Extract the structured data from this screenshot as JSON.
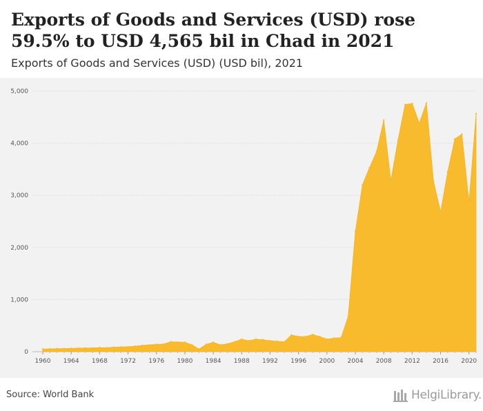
{
  "title": "Exports of Goods and Services (USD) rose 59.5% to USD 4,565 bil in Chad in 2021",
  "subtitle": "Exports of Goods and Services (USD) (USD bil), 2021",
  "source": "Source: World Bank",
  "logo_text": "HelgiLibrary.",
  "colors": {
    "area": "#f8bb2d",
    "grid": "#dcdcdc",
    "background": "#f2f2f2"
  },
  "chart_data": {
    "type": "area",
    "title": "Exports of Goods and Services (USD) rose 59.5% to USD 4,565 bil in Chad in 2021",
    "subtitle": "Exports of Goods and Services (USD) (USD bil), 2021",
    "xlabel": "",
    "ylabel": "",
    "ylim": [
      0,
      5000
    ],
    "y_ticks": [
      0,
      1000,
      2000,
      3000,
      4000,
      5000
    ],
    "y_tick_labels": [
      "0",
      "1,000",
      "2,000",
      "3,000",
      "4,000",
      "5,000"
    ],
    "x_ticks": [
      1960,
      1964,
      1968,
      1972,
      1976,
      1980,
      1984,
      1988,
      1992,
      1996,
      2000,
      2004,
      2008,
      2012,
      2016,
      2020
    ],
    "grid": true,
    "legend": "none",
    "x": [
      1960,
      1961,
      1962,
      1963,
      1964,
      1965,
      1966,
      1967,
      1968,
      1969,
      1970,
      1971,
      1972,
      1973,
      1974,
      1975,
      1976,
      1977,
      1978,
      1979,
      1980,
      1981,
      1982,
      1983,
      1984,
      1985,
      1986,
      1987,
      1988,
      1989,
      1990,
      1991,
      1992,
      1993,
      1994,
      1995,
      1996,
      1997,
      1998,
      1999,
      2000,
      2001,
      2002,
      2003,
      2004,
      2005,
      2006,
      2007,
      2008,
      2009,
      2010,
      2011,
      2012,
      2013,
      2014,
      2015,
      2016,
      2017,
      2018,
      2019,
      2020,
      2021
    ],
    "series": [
      {
        "values": [
          50,
          55,
          58,
          60,
          63,
          68,
          70,
          72,
          78,
          75,
          85,
          90,
          95,
          105,
          120,
          130,
          140,
          145,
          190,
          185,
          180,
          130,
          50,
          140,
          180,
          130,
          150,
          190,
          240,
          210,
          240,
          230,
          210,
          200,
          190,
          320,
          290,
          290,
          330,
          290,
          240,
          260,
          270,
          680,
          2300,
          3200,
          3530,
          3840,
          4440,
          3280,
          4050,
          4740,
          4760,
          4380,
          4770,
          3270,
          2680,
          3450,
          4080,
          4170,
          2860,
          4565
        ]
      }
    ]
  }
}
